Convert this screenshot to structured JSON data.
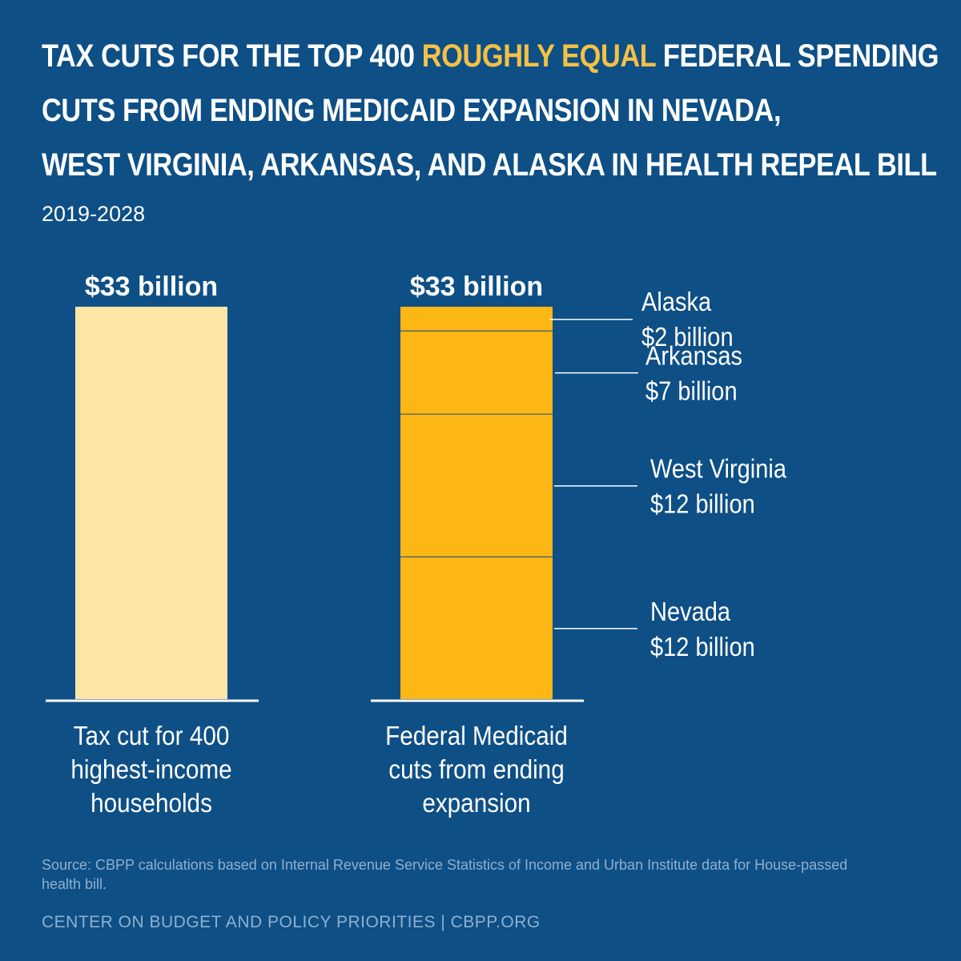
{
  "title": {
    "part1": "Tax cuts for the top 400 ",
    "highlight": "roughly equal",
    "part2": " federal spending",
    "line2": "cuts from ending Medicaid expansion in Nevada,",
    "line3": "West Virginia, Arkansas, and Alaska in health repeal bill"
  },
  "subtitle": "2019-2028",
  "chart_data": {
    "type": "bar",
    "subtype": "stacked",
    "title": "Tax cuts for the top 400 roughly equal federal spending cuts from ending Medicaid expansion in Nevada, West Virginia, Arkansas, and Alaska in health repeal bill",
    "subtitle": "2019-2028",
    "unit": "billion dollars",
    "ylim": [
      0,
      33
    ],
    "grid": false,
    "legend": "none",
    "bars": [
      {
        "category": "Tax cut for 400 highest-income households",
        "label_lines": [
          "Tax cut for 400",
          "highest-income",
          "households"
        ],
        "total": 33,
        "total_label": "$33 billion",
        "color": "#ffe6a6",
        "segments": [
          {
            "name": "Top 400 tax cut",
            "value": 33
          }
        ]
      },
      {
        "category": "Federal Medicaid cuts from ending expansion",
        "label_lines": [
          "Federal Medicaid",
          "cuts from ending",
          "expansion"
        ],
        "total": 33,
        "total_label": "$33 billion",
        "color": "#fdb714",
        "segments": [
          {
            "name": "Nevada",
            "value": 12,
            "value_label": "$12 billion"
          },
          {
            "name": "West Virginia",
            "value": 12,
            "value_label": "$12 billion"
          },
          {
            "name": "Arkansas",
            "value": 7,
            "value_label": "$7 billion"
          },
          {
            "name": "Alaska",
            "value": 2,
            "value_label": "$2 billion"
          }
        ]
      }
    ]
  },
  "source": "Source: CBPP calculations based on Internal Revenue Service Statistics of Income and Urban Institute data for House-passed health bill.",
  "footer": "CENTER ON BUDGET AND POLICY PRIORITIES | CBPP.ORG",
  "colors": {
    "background": "#0e4f86",
    "highlight": "#f5c044",
    "divider": "#0e4f86",
    "muted_text": "#8fb0cf"
  }
}
